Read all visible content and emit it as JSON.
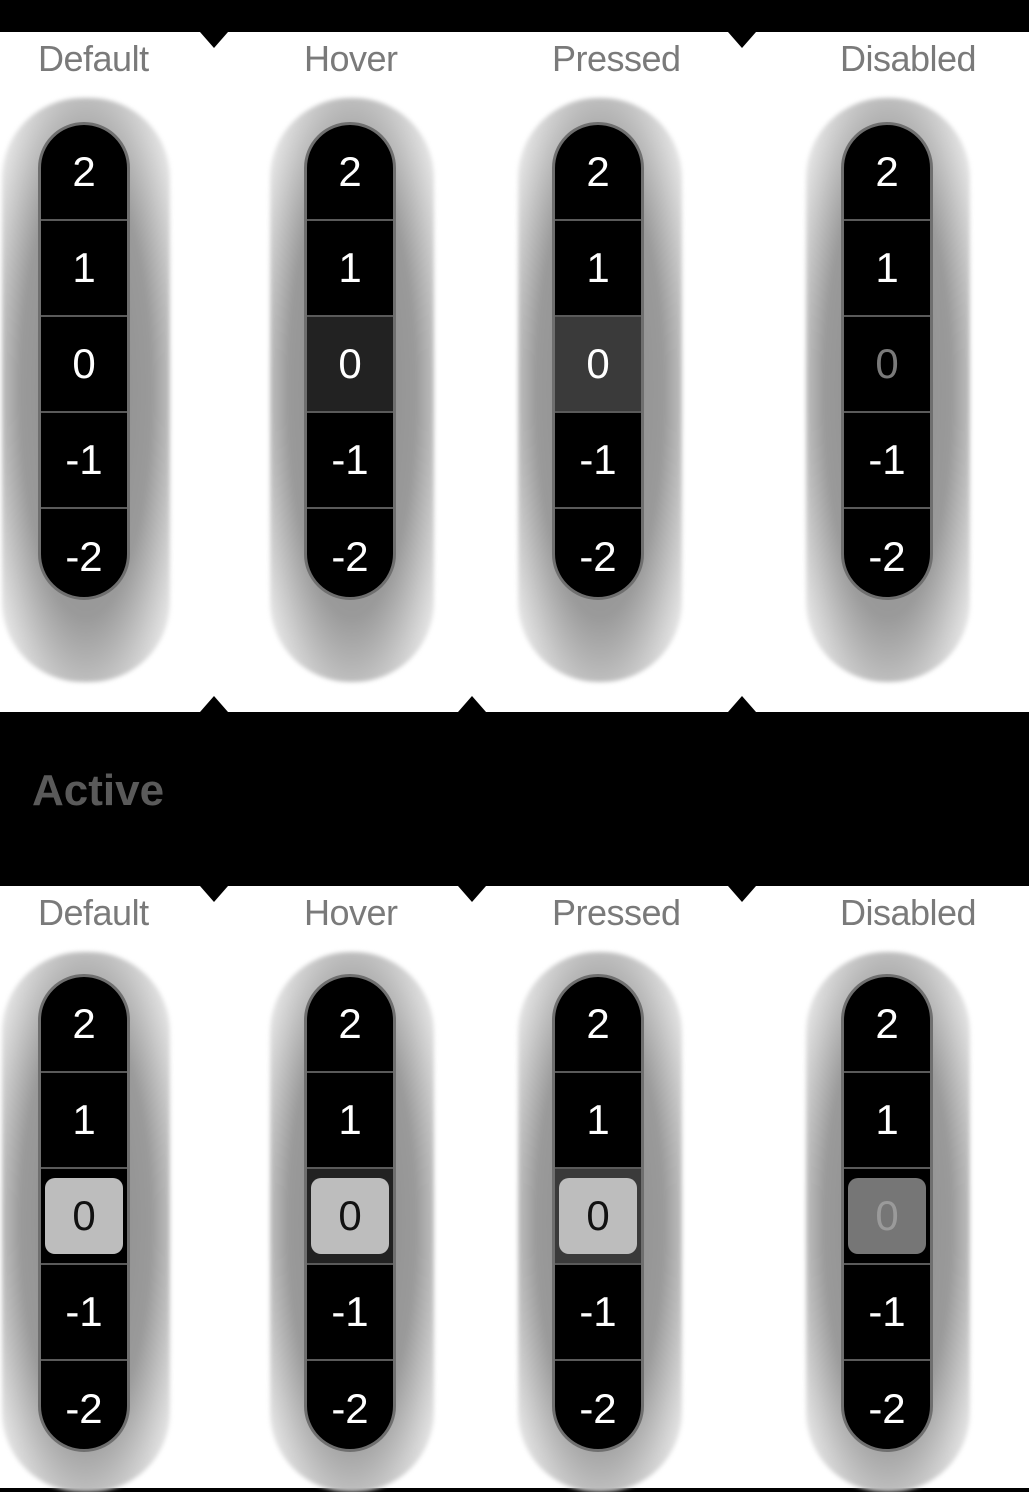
{
  "state_labels": [
    "Default",
    "Hover",
    "Pressed",
    "Disabled"
  ],
  "values": [
    "2",
    "1",
    "0",
    "-1",
    "-2"
  ],
  "section_title": "Active",
  "colors": {
    "background": "#000000",
    "panel": "#ffffff",
    "label": "#7a7a7a",
    "chip": "#bdbdbd"
  }
}
